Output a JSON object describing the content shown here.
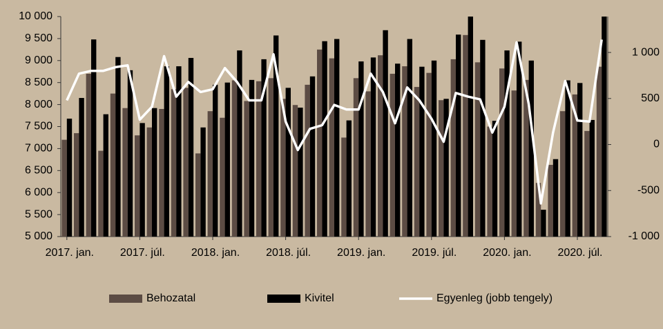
{
  "chart_data": {
    "type": "bar_line",
    "categories": [
      "2017. jan.",
      null,
      null,
      null,
      null,
      null,
      "2017. júl.",
      null,
      null,
      null,
      null,
      null,
      "2018. jan.",
      null,
      null,
      null,
      null,
      null,
      "2018. júl.",
      null,
      null,
      null,
      null,
      null,
      "2019. jan.",
      null,
      null,
      null,
      null,
      null,
      "2019. júl.",
      null,
      null,
      null,
      null,
      null,
      "2020. jan.",
      null,
      null,
      null,
      null,
      null,
      "2020. júl.",
      null,
      null
    ],
    "series": [
      {
        "name": "Behozatal",
        "color": "#5c4c44",
        "values": [
          7200,
          7350,
          8700,
          6950,
          8250,
          7920,
          7300,
          7480,
          7900,
          8350,
          8380,
          6890,
          7850,
          7700,
          8550,
          8080,
          8530,
          8600,
          8130,
          7990,
          8450,
          9250,
          9050,
          7250,
          8600,
          8300,
          9120,
          8700,
          8870,
          8400,
          8720,
          8100,
          9030,
          9580,
          8960,
          7500,
          8820,
          8320,
          8560,
          6220,
          6630,
          7850,
          8230,
          7400,
          8860
        ]
      },
      {
        "name": "Kivitel",
        "color": "#000000",
        "values": [
          7680,
          8150,
          9480,
          7780,
          9080,
          8780,
          7580,
          7920,
          8870,
          8870,
          9060,
          7480,
          8450,
          8500,
          9230,
          8560,
          9030,
          9570,
          8380,
          7930,
          8640,
          9440,
          9490,
          7640,
          8980,
          9070,
          9690,
          8930,
          9490,
          8860,
          9000,
          8130,
          9590,
          10000,
          9470,
          7630,
          9230,
          9430,
          9000,
          5610,
          6760,
          8550,
          8490,
          7650,
          10000
        ]
      },
      {
        "name": "Egyenleg (jobb tengely)",
        "color": "#ffffff",
        "axis": "y2",
        "values": [
          480,
          770,
          800,
          800,
          840,
          860,
          270,
          410,
          960,
          520,
          680,
          570,
          600,
          830,
          680,
          480,
          480,
          980,
          250,
          -60,
          170,
          210,
          430,
          380,
          380,
          770,
          570,
          230,
          620,
          480,
          280,
          30,
          560,
          520,
          490,
          130,
          410,
          1110,
          440,
          -640,
          130,
          690,
          260,
          250,
          1140
        ]
      }
    ],
    "ylim": [
      5000,
      10000
    ],
    "yticks": [
      {
        "value": 5000,
        "label": "5 000"
      },
      {
        "value": 5500,
        "label": "5 500"
      },
      {
        "value": 6000,
        "label": "6 000"
      },
      {
        "value": 6500,
        "label": "6 500"
      },
      {
        "value": 7000,
        "label": "7 000"
      },
      {
        "value": 7500,
        "label": "7 500"
      },
      {
        "value": 8000,
        "label": "8 000"
      },
      {
        "value": 8500,
        "label": "8 500"
      },
      {
        "value": 9000,
        "label": "9 000"
      },
      {
        "value": 9500,
        "label": "9 500"
      },
      {
        "value": 10000,
        "label": "10 000"
      }
    ],
    "y2lim": [
      -1000,
      1390
    ],
    "y2ticks": [
      {
        "value": -1000,
        "label": "-1 000"
      },
      -500,
      0,
      500,
      {
        "value": 1000,
        "label": "1 000"
      }
    ],
    "grid": false,
    "legend": "bottom"
  }
}
